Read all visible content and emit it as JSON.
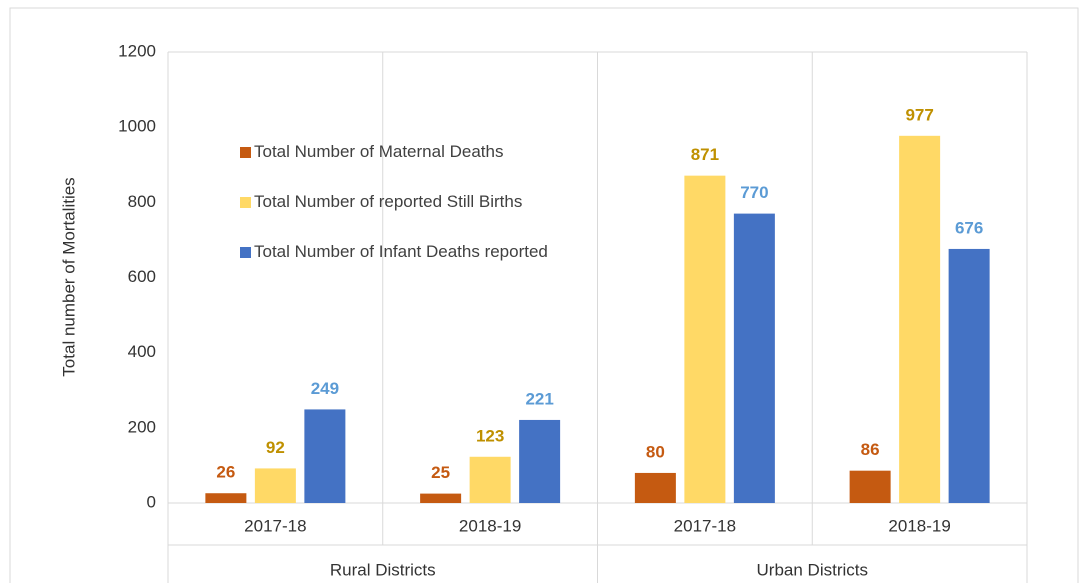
{
  "chart_data": {
    "type": "bar",
    "y_axis_label": "Total number of Mortalities",
    "categories": [
      "2017-18",
      "2018-19",
      "2017-18",
      "2018-19"
    ],
    "group_labels": [
      "Rural Districts",
      "Urban Districts"
    ],
    "series": [
      {
        "name": "Total Number of Maternal Deaths",
        "color": "#c55a11",
        "label_color": "#c55a11",
        "values": [
          26,
          25,
          80,
          86
        ]
      },
      {
        "name": "Total Number of reported Still Births",
        "color": "#ffd966",
        "label_color": "#bf9000",
        "values": [
          92,
          123,
          871,
          977
        ]
      },
      {
        "name": "Total Number of Infant Deaths reported",
        "color": "#4472c4",
        "label_color": "#5b9bd5",
        "values": [
          249,
          221,
          770,
          676
        ]
      }
    ],
    "ylim": [
      0,
      1200
    ],
    "yticks": [
      0,
      200,
      400,
      600,
      800,
      1000,
      1200
    ],
    "grid": false,
    "legend": "top-left"
  }
}
